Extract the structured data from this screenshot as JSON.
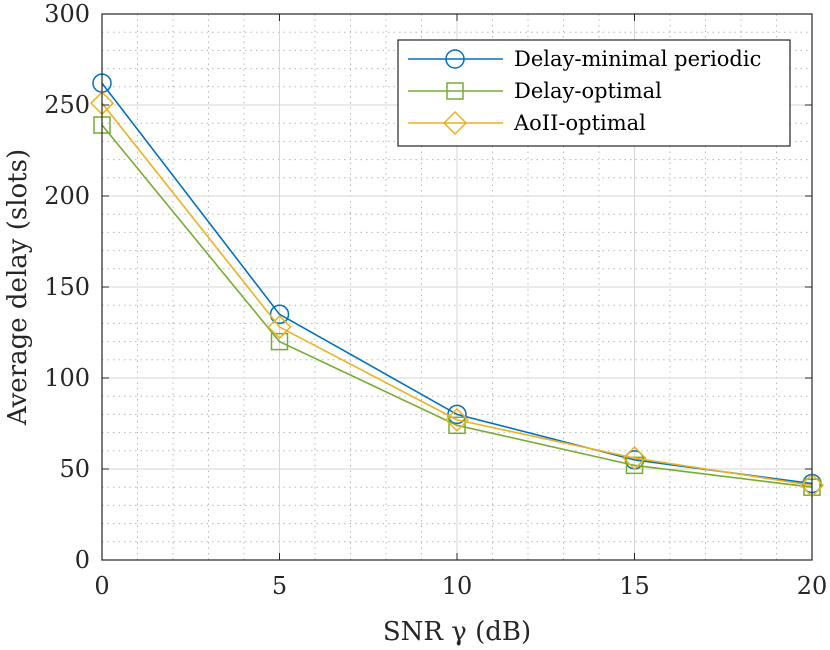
{
  "chart_data": {
    "type": "line",
    "title": "",
    "xlabel": "SNR γ (dB)",
    "ylabel": "Average delay (slots)",
    "x": [
      0,
      5,
      10,
      15,
      20
    ],
    "xlim": [
      0,
      20
    ],
    "ylim": [
      0,
      300
    ],
    "xticks": [
      0,
      5,
      10,
      15,
      20
    ],
    "yticks": [
      0,
      50,
      100,
      150,
      200,
      250,
      300
    ],
    "xtick_labels": [
      "0",
      "5",
      "10",
      "15",
      "20"
    ],
    "ytick_labels": [
      "0",
      "50",
      "100",
      "150",
      "200",
      "250",
      "300"
    ],
    "grid": true,
    "legend_position": "top-right",
    "series": [
      {
        "name": "Delay-minimal periodic",
        "marker": "circle",
        "color": "#0072BD",
        "values": [
          262,
          135,
          80,
          55,
          42
        ]
      },
      {
        "name": "Delay-optimal",
        "marker": "square",
        "color": "#77AC30",
        "values": [
          239,
          120,
          74,
          52,
          40
        ]
      },
      {
        "name": "AoII-optimal",
        "marker": "diamond",
        "color": "#EDB120",
        "values": [
          251,
          128,
          77,
          56,
          41
        ]
      }
    ]
  }
}
